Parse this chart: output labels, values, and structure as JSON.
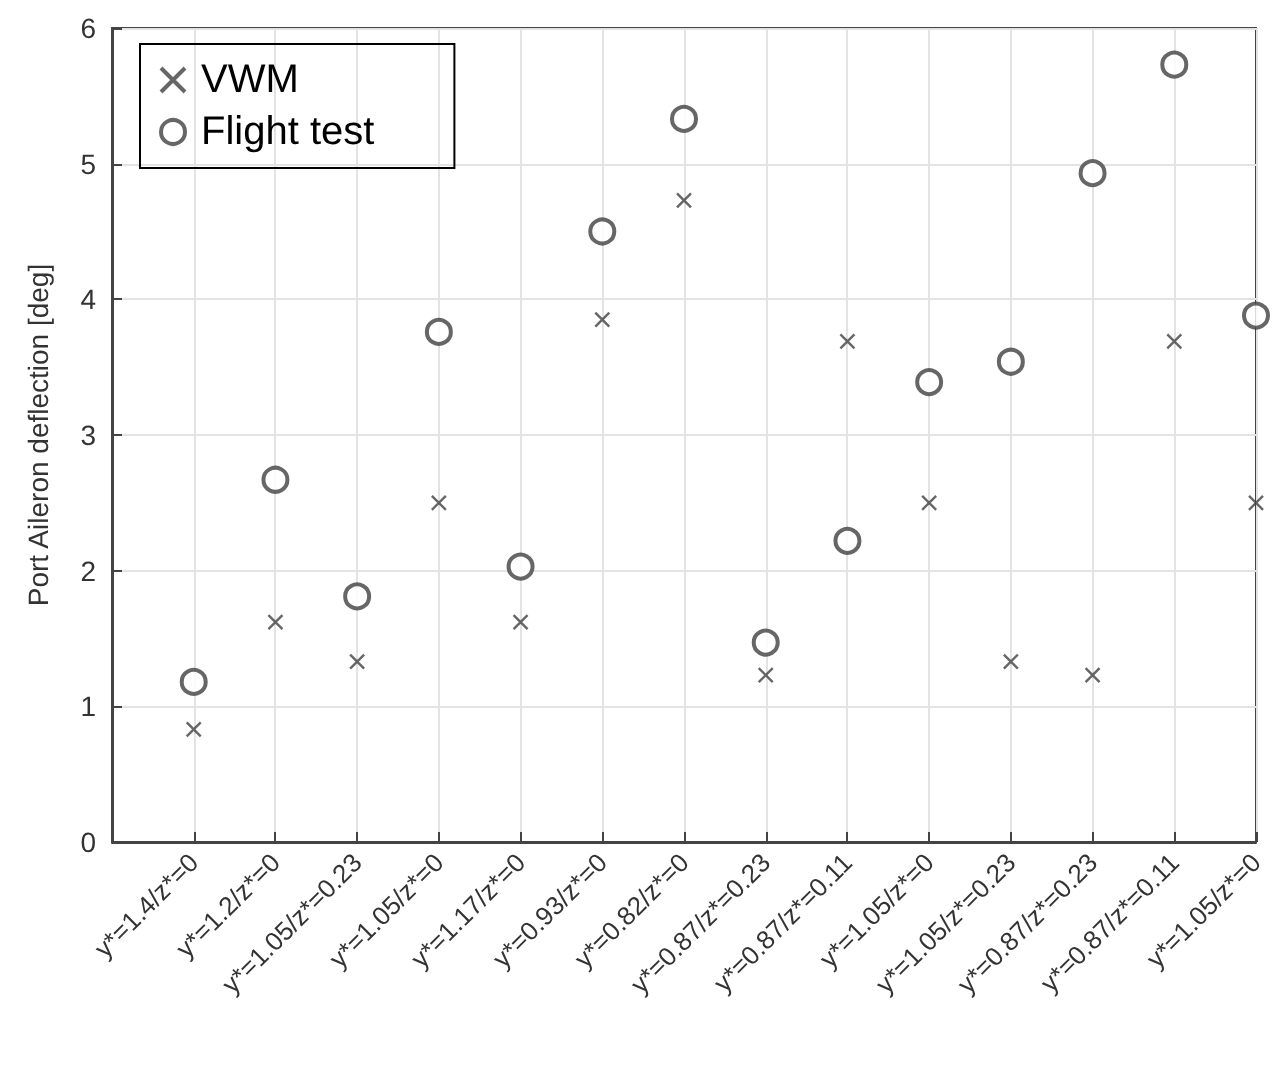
{
  "chart_data": {
    "type": "scatter",
    "ylabel": "Port Aileron deflection [deg]",
    "categories": [
      "y*=1.4/z*=0",
      "y*=1.2/z*=0",
      "y*=1.05/z*=0.23",
      "y*=1.05/z*=0",
      "y*=1.17/z*=0",
      "y*=0.93/z*=0",
      "y*=0.82/z*=0",
      "y*=0.87/z*=0.23",
      "y*=0.87/z*=0.11",
      "y*=1.05/z*=0",
      "y*=1.05/z*=0.23",
      "y*=0.87/z*=0.23",
      "y*=0.87/z*=0.11",
      "y*=1.05/z*=0"
    ],
    "series": [
      {
        "name": "VWM",
        "color": "#404040",
        "marker": "cross",
        "values": [
          0.83,
          1.62,
          1.33,
          2.5,
          1.62,
          3.85,
          4.73,
          1.23,
          3.69,
          2.5,
          1.33,
          1.23,
          3.69,
          2.5
        ]
      },
      {
        "name": "Flight test",
        "color": "#404040",
        "marker": "circle",
        "values": [
          1.18,
          2.67,
          1.81,
          3.76,
          2.03,
          4.5,
          5.33,
          1.47,
          2.22,
          3.39,
          3.54,
          4.93,
          5.73,
          3.88
        ]
      }
    ],
    "ylim": [
      0,
      6
    ],
    "yticks": [
      0,
      1,
      2,
      3,
      4,
      5,
      6
    ],
    "grid": true,
    "legend": "top left"
  }
}
